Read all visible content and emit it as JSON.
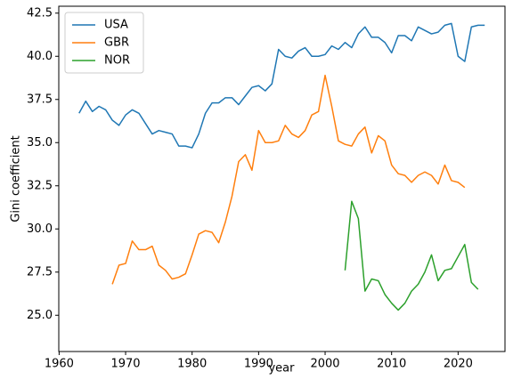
{
  "chart_data": {
    "type": "line",
    "x_label": "year",
    "y_label": "Gini coefficient",
    "x": [
      1963,
      1964,
      1965,
      1966,
      1967,
      1968,
      1969,
      1970,
      1971,
      1972,
      1973,
      1974,
      1975,
      1976,
      1977,
      1978,
      1979,
      1980,
      1981,
      1982,
      1983,
      1984,
      1985,
      1986,
      1987,
      1988,
      1989,
      1990,
      1991,
      1992,
      1993,
      1994,
      1995,
      1996,
      1997,
      1998,
      1999,
      2000,
      2001,
      2002,
      2003,
      2004,
      2005,
      2006,
      2007,
      2008,
      2009,
      2010,
      2011,
      2012,
      2013,
      2014,
      2015,
      2016,
      2017,
      2018,
      2019,
      2020,
      2021,
      2022,
      2023,
      2024
    ],
    "series": [
      {
        "name": "USA",
        "color": "#1f77b4",
        "values": [
          36.7,
          37.4,
          36.8,
          37.1,
          36.9,
          36.3,
          36.0,
          36.6,
          36.9,
          36.7,
          36.1,
          35.5,
          35.7,
          35.6,
          35.5,
          34.8,
          34.8,
          34.7,
          35.5,
          36.7,
          37.3,
          37.3,
          37.6,
          37.6,
          37.2,
          37.7,
          38.2,
          38.3,
          38.0,
          38.4,
          40.4,
          40.0,
          39.9,
          40.3,
          40.5,
          40.0,
          40.0,
          40.1,
          40.6,
          40.4,
          40.8,
          40.5,
          41.3,
          41.7,
          41.1,
          41.1,
          40.8,
          40.2,
          41.2,
          41.2,
          40.9,
          41.7,
          41.5,
          41.3,
          41.4,
          41.8,
          41.9,
          40.0,
          39.7,
          41.7,
          41.8,
          41.8
        ]
      },
      {
        "name": "GBR",
        "color": "#ff7f0e",
        "values": [
          null,
          null,
          null,
          null,
          null,
          26.8,
          27.9,
          28.0,
          29.3,
          28.8,
          28.8,
          29.0,
          27.9,
          27.6,
          27.1,
          27.2,
          27.4,
          28.5,
          29.7,
          29.9,
          29.8,
          29.2,
          30.4,
          31.9,
          33.9,
          34.3,
          33.4,
          35.7,
          35.0,
          35.0,
          35.1,
          36.0,
          35.5,
          35.3,
          35.7,
          36.6,
          36.8,
          38.9,
          37.1,
          35.1,
          34.9,
          34.8,
          35.5,
          35.9,
          34.4,
          35.4,
          35.1,
          33.7,
          33.2,
          33.1,
          32.7,
          33.1,
          33.3,
          33.1,
          32.6,
          33.7,
          32.8,
          32.7,
          32.4,
          null,
          null,
          null
        ]
      },
      {
        "name": "NOR",
        "color": "#2ca02c",
        "values": [
          null,
          null,
          null,
          null,
          null,
          null,
          null,
          null,
          null,
          null,
          null,
          null,
          null,
          null,
          null,
          null,
          null,
          null,
          null,
          null,
          null,
          null,
          null,
          null,
          null,
          null,
          null,
          null,
          null,
          null,
          null,
          null,
          null,
          null,
          null,
          null,
          null,
          null,
          null,
          null,
          27.6,
          31.6,
          30.6,
          26.4,
          27.1,
          27.0,
          26.2,
          25.7,
          25.3,
          25.7,
          26.4,
          26.8,
          27.5,
          28.5,
          27.0,
          27.6,
          27.7,
          28.4,
          29.1,
          26.9,
          26.5,
          null
        ]
      }
    ],
    "xlim": [
      1959.95,
      2027.05
    ],
    "xticks": [
      1960,
      1970,
      1980,
      1990,
      2000,
      2010,
      2020
    ],
    "ylim": [
      22.9,
      42.9
    ],
    "yticks": [
      {
        "value": 25,
        "label": "25.0"
      },
      27.5,
      {
        "value": 30,
        "label": "30.0"
      },
      32.5,
      {
        "value": 35,
        "label": "35.0"
      },
      37.5,
      {
        "value": 40,
        "label": "40.0"
      },
      42.5
    ],
    "legend": "upper left"
  }
}
